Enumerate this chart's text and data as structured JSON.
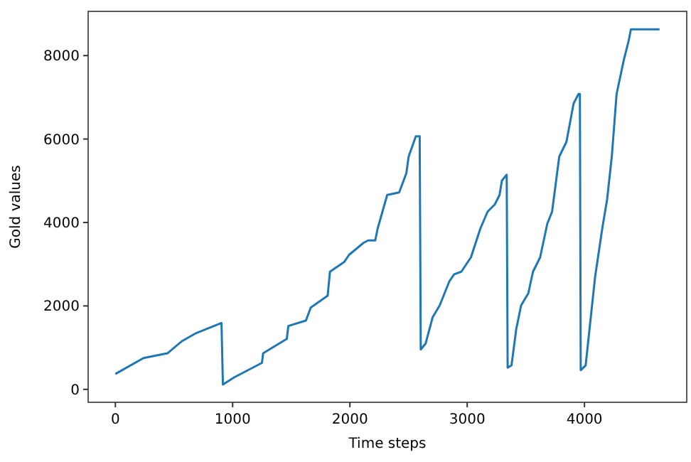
{
  "chart_data": {
    "type": "line",
    "xlabel": "Time steps",
    "ylabel": "Gold values",
    "xlim": [
      -232,
      4872
    ],
    "xticks": [
      0,
      1000,
      2000,
      3000,
      4000
    ],
    "ylim": [
      -310,
      9060
    ],
    "yticks": [
      0,
      2000,
      4000,
      6000,
      8000
    ],
    "series": [
      {
        "color": "#1f77b4",
        "x": [
          0,
          240,
          444,
          565,
          690,
          905,
          917,
          1015,
          1250,
          1260,
          1462,
          1475,
          1625,
          1666,
          1810,
          1830,
          1950,
          1993,
          2115,
          2155,
          2216,
          2237,
          2318,
          2420,
          2481,
          2501,
          2562,
          2595,
          2604,
          2645,
          2705,
          2766,
          2848,
          2889,
          2950,
          3032,
          3113,
          3174,
          3235,
          3276,
          3296,
          3337,
          3345,
          3378,
          3418,
          3460,
          3521,
          3561,
          3622,
          3683,
          3724,
          3785,
          3846,
          3907,
          3949,
          3961,
          3968,
          4010,
          4091,
          4152,
          4193,
          4233,
          4274,
          4335,
          4376,
          4396,
          4640
        ],
        "values": [
          370,
          750,
          865,
          1150,
          1350,
          1590,
          117,
          290,
          635,
          865,
          1210,
          1520,
          1650,
          1960,
          2245,
          2820,
          3050,
          3225,
          3510,
          3570,
          3570,
          3860,
          4660,
          4720,
          5180,
          5580,
          6065,
          6065,
          955,
          1095,
          1725,
          2015,
          2590,
          2760,
          2820,
          3165,
          3860,
          4260,
          4430,
          4660,
          5005,
          5145,
          520,
          575,
          1440,
          2015,
          2300,
          2820,
          3165,
          3970,
          4260,
          5580,
          5930,
          6850,
          7080,
          7080,
          460,
          575,
          2705,
          3860,
          4550,
          5580,
          7080,
          7890,
          8345,
          8630,
          8630
        ]
      }
    ]
  }
}
